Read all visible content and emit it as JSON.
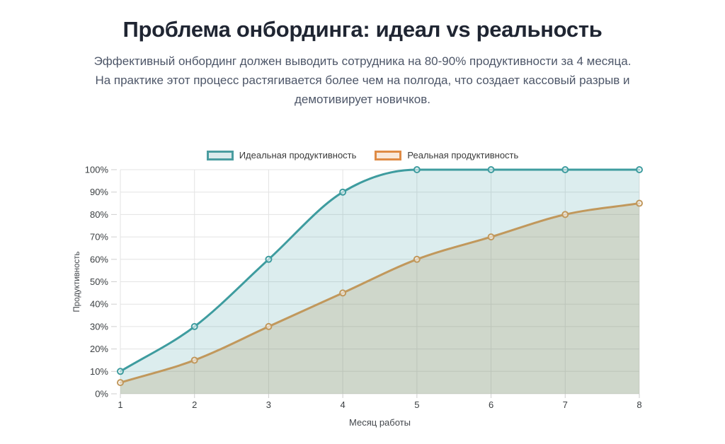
{
  "title": "Проблема онбординга: идеал vs реальность",
  "subtitle_lines": [
    "Эффективный онбординг должен выводить сотрудника на 80-90% продуктивности за 4 месяца.",
    "На практике этот процесс растягивается более чем на полгода, что создает кассовый разрыв и",
    "демотивирует новичков."
  ],
  "colors": {
    "background": "#FFFFFF",
    "title": "#1F2532",
    "subtitle": "#4D5668",
    "tick_label": "#3C4043",
    "axis_title": "#43474C",
    "grid": "#E3E3E3",
    "tick_mark": "#CFCFCF"
  },
  "chart_data": {
    "type": "area",
    "title": "",
    "x": [
      1,
      2,
      3,
      4,
      5,
      6,
      7,
      8
    ],
    "xlabel": "Месяц работы",
    "ylabel": "Продуктивность",
    "ylim": [
      0,
      100
    ],
    "y_tick_labels": [
      "0%",
      "10%",
      "20%",
      "30%",
      "40%",
      "50%",
      "60%",
      "70%",
      "80%",
      "90%",
      "100%"
    ],
    "grid": true,
    "smooth": true,
    "legend_position": "top",
    "series": [
      {
        "name": "Идеальная продуктивность",
        "values": [
          10,
          30,
          60,
          90,
          100,
          100,
          100,
          100
        ],
        "line_color": "#3E9C9F",
        "legend_color": "#4A9DA0",
        "fill_opacity": 0.18,
        "swatch_fill_opacity": 0.2
      },
      {
        "name": "Реальная продуктивность",
        "values": [
          5,
          15,
          30,
          45,
          60,
          70,
          80,
          85
        ],
        "line_color": "#C1985C",
        "legend_color": "#DF8B45",
        "fill_opacity": 0.26,
        "swatch_fill_opacity": 0.2
      }
    ]
  }
}
